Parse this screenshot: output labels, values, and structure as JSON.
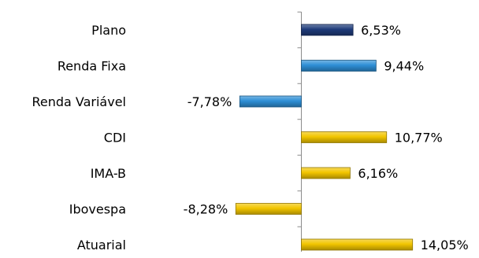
{
  "chart_data": {
    "type": "bar",
    "orientation": "horizontal",
    "categories": [
      "Plano",
      "Renda Fixa",
      "Renda Variável",
      "CDI",
      "IMA-B",
      "Ibovespa",
      "Atuarial"
    ],
    "values": [
      6.53,
      9.44,
      -7.78,
      10.77,
      6.16,
      -8.28,
      14.05
    ],
    "labels": [
      "6,53%",
      "9,44%",
      "-7,78%",
      "10,77%",
      "6,16%",
      "-8,28%",
      "14,05%"
    ],
    "bar_colors": [
      "#1f3b7a",
      "#2e8fd6",
      "#2e8fd6",
      "#f2c500",
      "#f2c500",
      "#f2c500",
      "#f2c500"
    ],
    "legend": "none",
    "grid": false,
    "title": "",
    "xlabel": "",
    "ylabel": ""
  }
}
